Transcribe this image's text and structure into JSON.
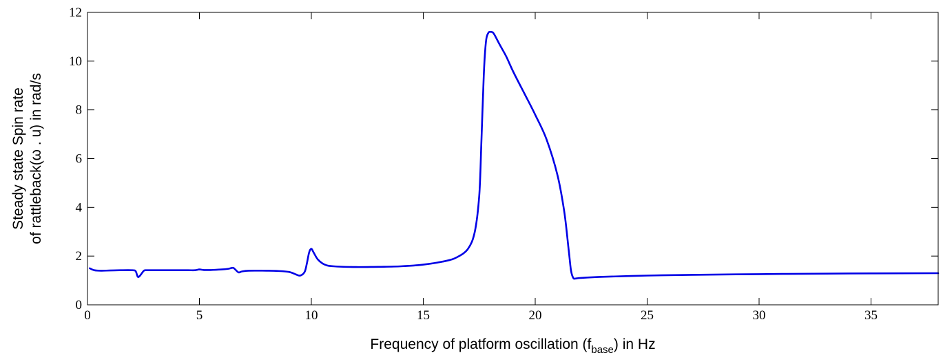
{
  "chart_data": {
    "type": "line",
    "title": "",
    "xlabel": {
      "before": "Frequency of platform oscillation (f",
      "subscript": "base",
      "after": ") in Hz"
    },
    "ylabel": {
      "line1": "Steady state Spin rate",
      "line2": "of rattleback(ω . u) in rad/s"
    },
    "xlim": [
      0,
      38
    ],
    "ylim": [
      0,
      12
    ],
    "xticks": [
      0,
      5,
      10,
      15,
      20,
      25,
      30,
      35
    ],
    "yticks": [
      0,
      2,
      4,
      6,
      8,
      10,
      12
    ],
    "grid": false,
    "legend": "none",
    "series": [
      {
        "color": "#0000e6",
        "x": [
          0.1,
          0.3,
          0.6,
          1.0,
          1.5,
          2.0,
          2.15,
          2.25,
          2.35,
          2.5,
          2.6,
          3.0,
          3.5,
          4.0,
          4.5,
          4.8,
          5.0,
          5.2,
          5.5,
          6.0,
          6.3,
          6.5,
          6.6,
          6.75,
          6.9,
          7.2,
          8.0,
          8.5,
          9.0,
          9.3,
          9.5,
          9.7,
          9.8,
          9.9,
          10.0,
          10.1,
          10.3,
          10.6,
          11.0,
          12.0,
          13.0,
          14.0,
          15.0,
          16.0,
          16.5,
          17.0,
          17.3,
          17.5,
          17.6,
          17.7,
          17.8,
          17.9,
          18.0,
          18.1,
          18.2,
          18.4,
          18.7,
          19.0,
          19.5,
          20.0,
          20.5,
          21.0,
          21.3,
          21.5,
          21.6,
          21.7,
          21.8,
          22.0,
          23.0,
          25.0,
          27.0,
          30.0,
          33.0,
          35.0,
          38.0
        ],
        "y": [
          1.5,
          1.42,
          1.4,
          1.41,
          1.42,
          1.42,
          1.38,
          1.15,
          1.2,
          1.38,
          1.42,
          1.42,
          1.42,
          1.42,
          1.42,
          1.42,
          1.45,
          1.43,
          1.43,
          1.45,
          1.48,
          1.52,
          1.45,
          1.33,
          1.37,
          1.4,
          1.4,
          1.39,
          1.35,
          1.25,
          1.2,
          1.35,
          1.7,
          2.15,
          2.3,
          2.15,
          1.85,
          1.65,
          1.58,
          1.55,
          1.56,
          1.58,
          1.65,
          1.8,
          1.95,
          2.3,
          3.0,
          4.5,
          6.8,
          9.4,
          10.8,
          11.15,
          11.2,
          11.18,
          11.05,
          10.7,
          10.2,
          9.6,
          8.7,
          7.8,
          6.8,
          5.3,
          3.8,
          2.2,
          1.4,
          1.1,
          1.08,
          1.1,
          1.15,
          1.2,
          1.23,
          1.26,
          1.28,
          1.29,
          1.3
        ]
      }
    ]
  }
}
